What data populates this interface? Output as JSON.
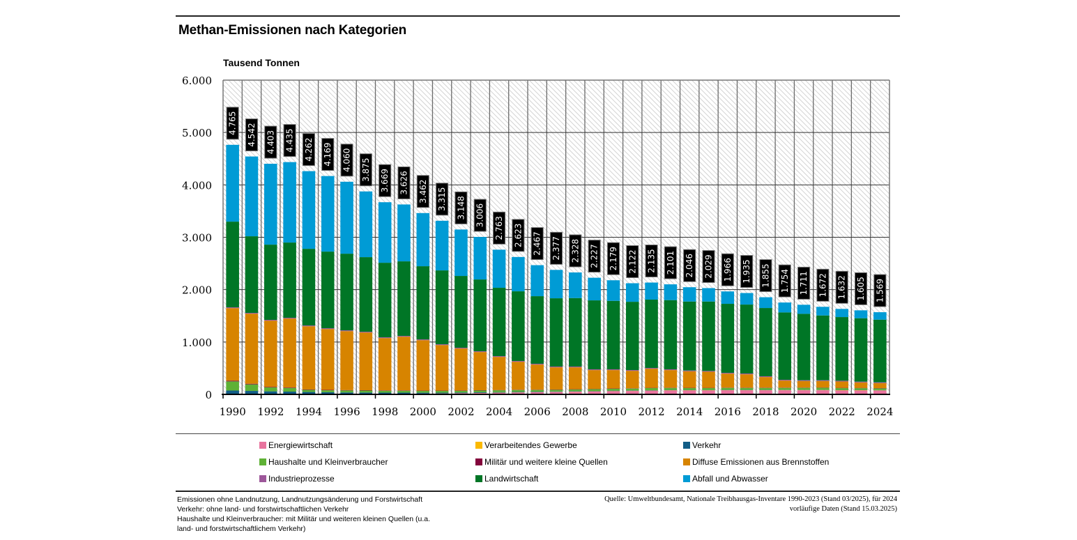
{
  "header": {
    "title": "Methan-Emissionen nach Kategorien",
    "unit_label": "Tausend Tonnen"
  },
  "footer": {
    "notes": [
      "Emissionen ohne Landnutzung, Landnutzungsänderung und Forstwirtschaft",
      "Verkehr: ohne land- und forstwirtschaftlichen Verkehr",
      "Haushalte und Kleinverbraucher: mit Militär und weiteren kleinen Quellen (u.a.",
      "land- und forstwirtschaftlichem Verkehr)"
    ],
    "source": [
      "Quelle: Umweltbundesamt, Nationale Treibhausgas-Inventare 1990-2023 (Stand 03/2025), für 2024",
      "vorläufige Daten (Stand 15.03.2025)"
    ]
  },
  "chart_data": {
    "type": "bar",
    "stacked": true,
    "title": "Methan-Emissionen nach Kategorien",
    "ylabel": "Tausend Tonnen",
    "xlabel": "",
    "ylim": [
      0,
      6000
    ],
    "yticks": [
      0,
      1000,
      2000,
      3000,
      4000,
      5000,
      6000
    ],
    "ytick_labels": [
      "0",
      "1.000",
      "2.000",
      "3.000",
      "4.000",
      "5.000",
      "6.000"
    ],
    "grid": true,
    "legend_position": "bottom",
    "categories": [
      "1990",
      "1991",
      "1992",
      "1993",
      "1994",
      "1995",
      "1996",
      "1997",
      "1998",
      "1999",
      "2000",
      "2001",
      "2002",
      "2003",
      "2004",
      "2005",
      "2006",
      "2007",
      "2008",
      "2009",
      "2010",
      "2011",
      "2012",
      "2013",
      "2014",
      "2015",
      "2016",
      "2017",
      "2018",
      "2019",
      "2020",
      "2021",
      "2022",
      "2023",
      "2024"
    ],
    "xtick_labels": [
      "1990",
      "1992",
      "1994",
      "1996",
      "1998",
      "2000",
      "2002",
      "2004",
      "2006",
      "2008",
      "2010",
      "2012",
      "2014",
      "2016",
      "2018",
      "2020",
      "2022",
      "2024"
    ],
    "totals": [
      4765,
      4542,
      4403,
      4435,
      4262,
      4169,
      4060,
      3875,
      3669,
      3626,
      3462,
      3315,
      3148,
      3006,
      2763,
      2623,
      2467,
      2377,
      2328,
      2227,
      2179,
      2122,
      2135,
      2101,
      2046,
      2029,
      1966,
      1935,
      1855,
      1754,
      1711,
      1672,
      1632,
      1605,
      1569
    ],
    "total_labels": [
      "4.765",
      "4.542",
      "4.403",
      "4.435",
      "4.262",
      "4.169",
      "4.060",
      "3.875",
      "3.669",
      "3.626",
      "3.462",
      "3.315",
      "3.148",
      "3.006",
      "2.763",
      "2.623",
      "2.467",
      "2.377",
      "2.328",
      "2.227",
      "2.179",
      "2.122",
      "2.135",
      "2.101",
      "2.046",
      "2.029",
      "1.966",
      "1.935",
      "1.855",
      "1.754",
      "1.711",
      "1.672",
      "1.632",
      "1.605",
      "1.569"
    ],
    "series": [
      {
        "name": "Energiewirtschaft",
        "color": "#e8739e",
        "values": [
          5,
          5,
          5,
          5,
          5,
          6,
          6,
          7,
          8,
          10,
          12,
          15,
          20,
          25,
          30,
          35,
          40,
          45,
          50,
          55,
          60,
          65,
          70,
          75,
          75,
          75,
          78,
          78,
          78,
          78,
          78,
          78,
          75,
          75,
          72
        ]
      },
      {
        "name": "Verarbeitendes Gewerbe",
        "color": "#fbb900",
        "values": [
          3,
          3,
          3,
          3,
          3,
          3,
          3,
          3,
          3,
          3,
          3,
          3,
          3,
          3,
          3,
          3,
          3,
          3,
          4,
          4,
          4,
          4,
          4,
          4,
          4,
          4,
          4,
          4,
          4,
          5,
          5,
          5,
          5,
          5,
          5
        ]
      },
      {
        "name": "Verkehr",
        "color": "#125d86",
        "values": [
          65,
          58,
          50,
          45,
          38,
          32,
          28,
          25,
          22,
          20,
          17,
          15,
          13,
          12,
          11,
          10,
          9,
          8,
          8,
          7,
          7,
          6,
          6,
          6,
          6,
          5,
          5,
          5,
          5,
          5,
          5,
          5,
          5,
          5,
          5
        ]
      },
      {
        "name": "Haushalte und Kleinverbraucher",
        "color": "#5eb135",
        "values": [
          175,
          125,
          75,
          70,
          40,
          37,
          38,
          38,
          36,
          36,
          34,
          33,
          32,
          34,
          34,
          36,
          33,
          32,
          32,
          34,
          37,
          36,
          40,
          38,
          36,
          36,
          37,
          36,
          36,
          36,
          37,
          38,
          35,
          34,
          33
        ]
      },
      {
        "name": "Militär und weitere kleine Quellen",
        "color": "#83053c",
        "values": [
          14,
          12,
          10,
          9,
          8,
          8,
          7,
          7,
          7,
          7,
          6,
          6,
          6,
          6,
          5,
          5,
          5,
          5,
          5,
          5,
          5,
          5,
          5,
          5,
          5,
          5,
          5,
          5,
          5,
          5,
          5,
          5,
          5,
          5,
          5
        ]
      },
      {
        "name": "Diffuse Emissionen aus Brennstoffen",
        "color": "#d78400",
        "values": [
          1385,
          1338,
          1265,
          1316,
          1207,
          1162,
          1126,
          1102,
          999,
          1026,
          963,
          870,
          802,
          729,
          633,
          534,
          480,
          424,
          418,
          359,
          351,
          334,
          365,
          336,
          315,
          308,
          268,
          256,
          203,
          135,
          125,
          124,
          121,
          104,
          95
        ]
      },
      {
        "name": "Industrieprozesse",
        "color": "#9d579a",
        "values": [
          15,
          15,
          15,
          15,
          15,
          15,
          15,
          15,
          15,
          15,
          15,
          15,
          15,
          15,
          15,
          15,
          15,
          15,
          15,
          15,
          15,
          15,
          15,
          15,
          15,
          15,
          15,
          15,
          15,
          15,
          15,
          15,
          15,
          15,
          15
        ]
      },
      {
        "name": "Landwirtschaft",
        "color": "#007626",
        "values": [
          1636,
          1463,
          1436,
          1436,
          1463,
          1463,
          1463,
          1423,
          1423,
          1423,
          1397,
          1410,
          1370,
          1370,
          1304,
          1330,
          1290,
          1303,
          1307,
          1316,
          1307,
          1303,
          1304,
          1321,
          1317,
          1325,
          1317,
          1316,
          1303,
          1286,
          1268,
          1237,
          1215,
          1211,
          1197
        ]
      },
      {
        "name": "Abfall und Abwasser",
        "color": "#009bd5",
        "values": [
          1467,
          1523,
          1544,
          1536,
          1483,
          1443,
          1374,
          1255,
          1156,
          1086,
          1015,
          948,
          887,
          812,
          728,
          655,
          592,
          542,
          489,
          432,
          393,
          354,
          326,
          301,
          273,
          256,
          237,
          220,
          206,
          189,
          173,
          165,
          156,
          151,
          142
        ]
      }
    ]
  },
  "legend": {
    "items": [
      {
        "label": "Energiewirtschaft",
        "color": "#e8739e"
      },
      {
        "label": "Verarbeitendes Gewerbe",
        "color": "#fbb900"
      },
      {
        "label": "Verkehr",
        "color": "#125d86"
      },
      {
        "label": "Haushalte und Kleinverbraucher",
        "color": "#5eb135"
      },
      {
        "label": "Militär und weitere kleine Quellen",
        "color": "#83053c"
      },
      {
        "label": "Diffuse Emissionen aus Brennstoffen",
        "color": "#d78400"
      },
      {
        "label": "Industrieprozesse",
        "color": "#9d579a"
      },
      {
        "label": "Landwirtschaft",
        "color": "#007626"
      },
      {
        "label": "Abfall und Abwasser",
        "color": "#009bd5"
      }
    ]
  }
}
